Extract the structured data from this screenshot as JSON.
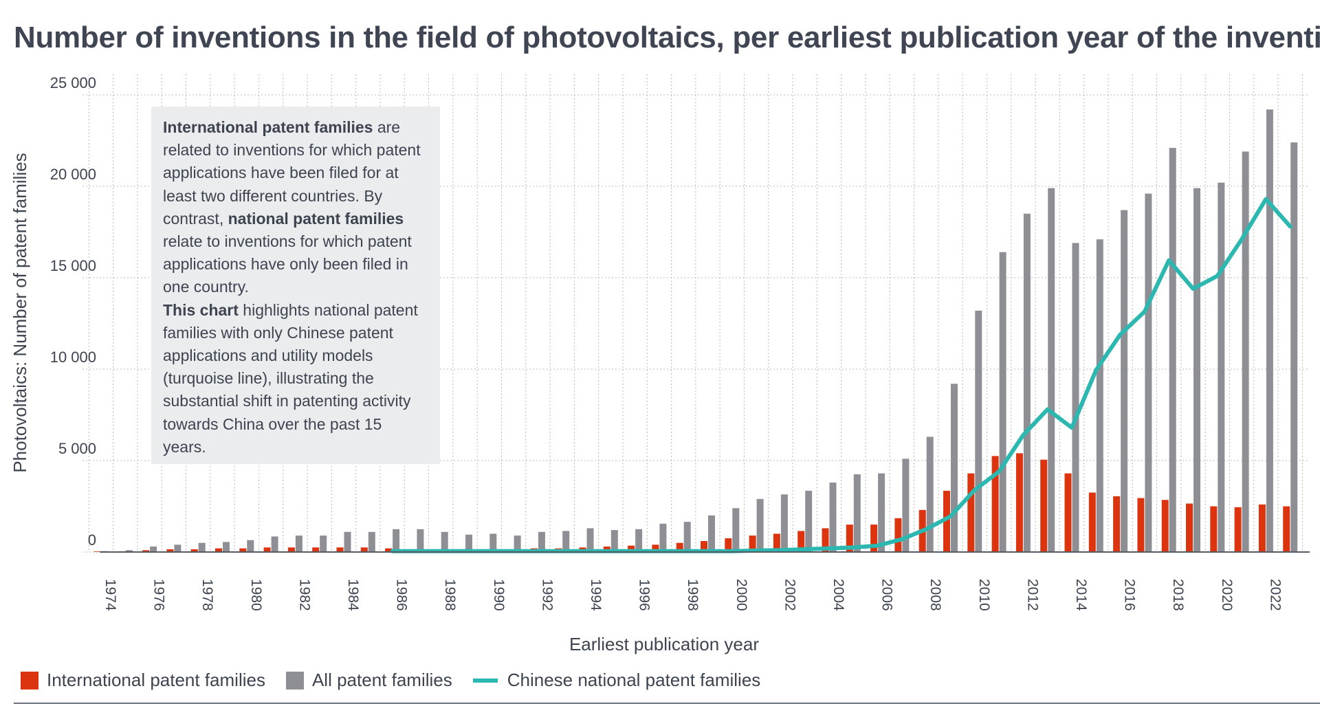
{
  "title": "Number of inventions in the field of photovoltaics, per earliest publication year of the invention",
  "note": {
    "p1_bold": "International patent families",
    "p1_rest": " are related to inventions for which patent applications have been filed for at least two different countries. By contrast, ",
    "p2_bold": "national patent families",
    "p2_rest": " relate to inventions for which patent applications have only been filed in one country.",
    "p3_bold": "This chart",
    "p3_rest": " highlights national patent families with only Chinese patent applications and utility models (turquoise line), illustrating the substantial shift in patenting activity towards China over the past 15 years."
  },
  "colors": {
    "international": "#db340f",
    "all": "#8d8f94",
    "chinese": "#2cb8b0",
    "grid": "#b8b8b8",
    "text": "#3d4450"
  },
  "chart_data": {
    "type": "bar",
    "title": "Number of inventions in the field of photovoltaics, per earliest publication year of the invention",
    "xlabel": "Earliest publication year",
    "ylabel": "Photovoltaics: Number of patent families",
    "ylim": [
      0,
      25000
    ],
    "yticks": [
      0,
      5000,
      10000,
      15000,
      20000,
      25000
    ],
    "ytick_labels": [
      "0",
      "5 000",
      "10 000",
      "15 000",
      "20 000",
      "25 000"
    ],
    "grid": true,
    "legend_position": "bottom",
    "categories": [
      1974,
      1975,
      1976,
      1977,
      1978,
      1979,
      1980,
      1981,
      1982,
      1983,
      1984,
      1985,
      1986,
      1987,
      1988,
      1989,
      1990,
      1991,
      1992,
      1993,
      1994,
      1995,
      1996,
      1997,
      1998,
      1999,
      2000,
      2001,
      2002,
      2003,
      2004,
      2005,
      2006,
      2007,
      2008,
      2009,
      2010,
      2011,
      2012,
      2013,
      2014,
      2015,
      2016,
      2017,
      2018,
      2019,
      2020,
      2021,
      2022,
      2023
    ],
    "xtick_labels": [
      "1974",
      "1976",
      "1978",
      "1980",
      "1982",
      "1984",
      "1986",
      "1988",
      "1990",
      "1992",
      "1994",
      "1996",
      "1998",
      "2000",
      "2002",
      "2004",
      "2006",
      "2008",
      "2010",
      "2012",
      "2014",
      "2016",
      "2018",
      "2020",
      "2022"
    ],
    "series": [
      {
        "name": "International patent families",
        "type": "bar",
        "values": [
          30,
          40,
          100,
          150,
          150,
          200,
          200,
          250,
          250,
          250,
          250,
          250,
          200,
          150,
          100,
          100,
          100,
          100,
          200,
          200,
          250,
          300,
          350,
          400,
          500,
          600,
          750,
          900,
          1000,
          1150,
          1300,
          1500,
          1500,
          1850,
          2300,
          3350,
          4300,
          5250,
          5400,
          5050,
          4300,
          3250,
          3050,
          2950,
          2850,
          2650,
          2500,
          2450,
          2600,
          2500
        ]
      },
      {
        "name": "All patent families",
        "type": "bar",
        "values": [
          50,
          100,
          300,
          400,
          500,
          550,
          650,
          850,
          900,
          900,
          1100,
          1100,
          1250,
          1250,
          1100,
          950,
          1000,
          900,
          1100,
          1150,
          1300,
          1200,
          1250,
          1550,
          1650,
          2000,
          2400,
          2900,
          3150,
          3350,
          3800,
          4250,
          4300,
          5100,
          6300,
          9200,
          13200,
          16400,
          18500,
          19900,
          16900,
          17100,
          18700,
          19600,
          22100,
          19900,
          20200,
          21900,
          24200,
          22400
        ]
      },
      {
        "name": "Chinese national patent families",
        "type": "line",
        "x": [
          1986,
          1987,
          1988,
          1989,
          1990,
          1991,
          1992,
          1993,
          1994,
          1995,
          1996,
          1997,
          1998,
          1999,
          2000,
          2001,
          2002,
          2003,
          2004,
          2005,
          2006,
          2007,
          2008,
          2009,
          2010,
          2011,
          2012,
          2013,
          2014,
          2015,
          2016,
          2017,
          2018,
          2019,
          2020,
          2021,
          2022,
          2023
        ],
        "values": [
          50,
          50,
          50,
          50,
          50,
          50,
          50,
          50,
          50,
          50,
          50,
          50,
          50,
          50,
          50,
          80,
          100,
          150,
          200,
          250,
          350,
          700,
          1250,
          1950,
          3400,
          4400,
          6400,
          7800,
          6800,
          9950,
          11900,
          13150,
          15950,
          14400,
          15100,
          17100,
          19300,
          17800
        ]
      }
    ]
  }
}
